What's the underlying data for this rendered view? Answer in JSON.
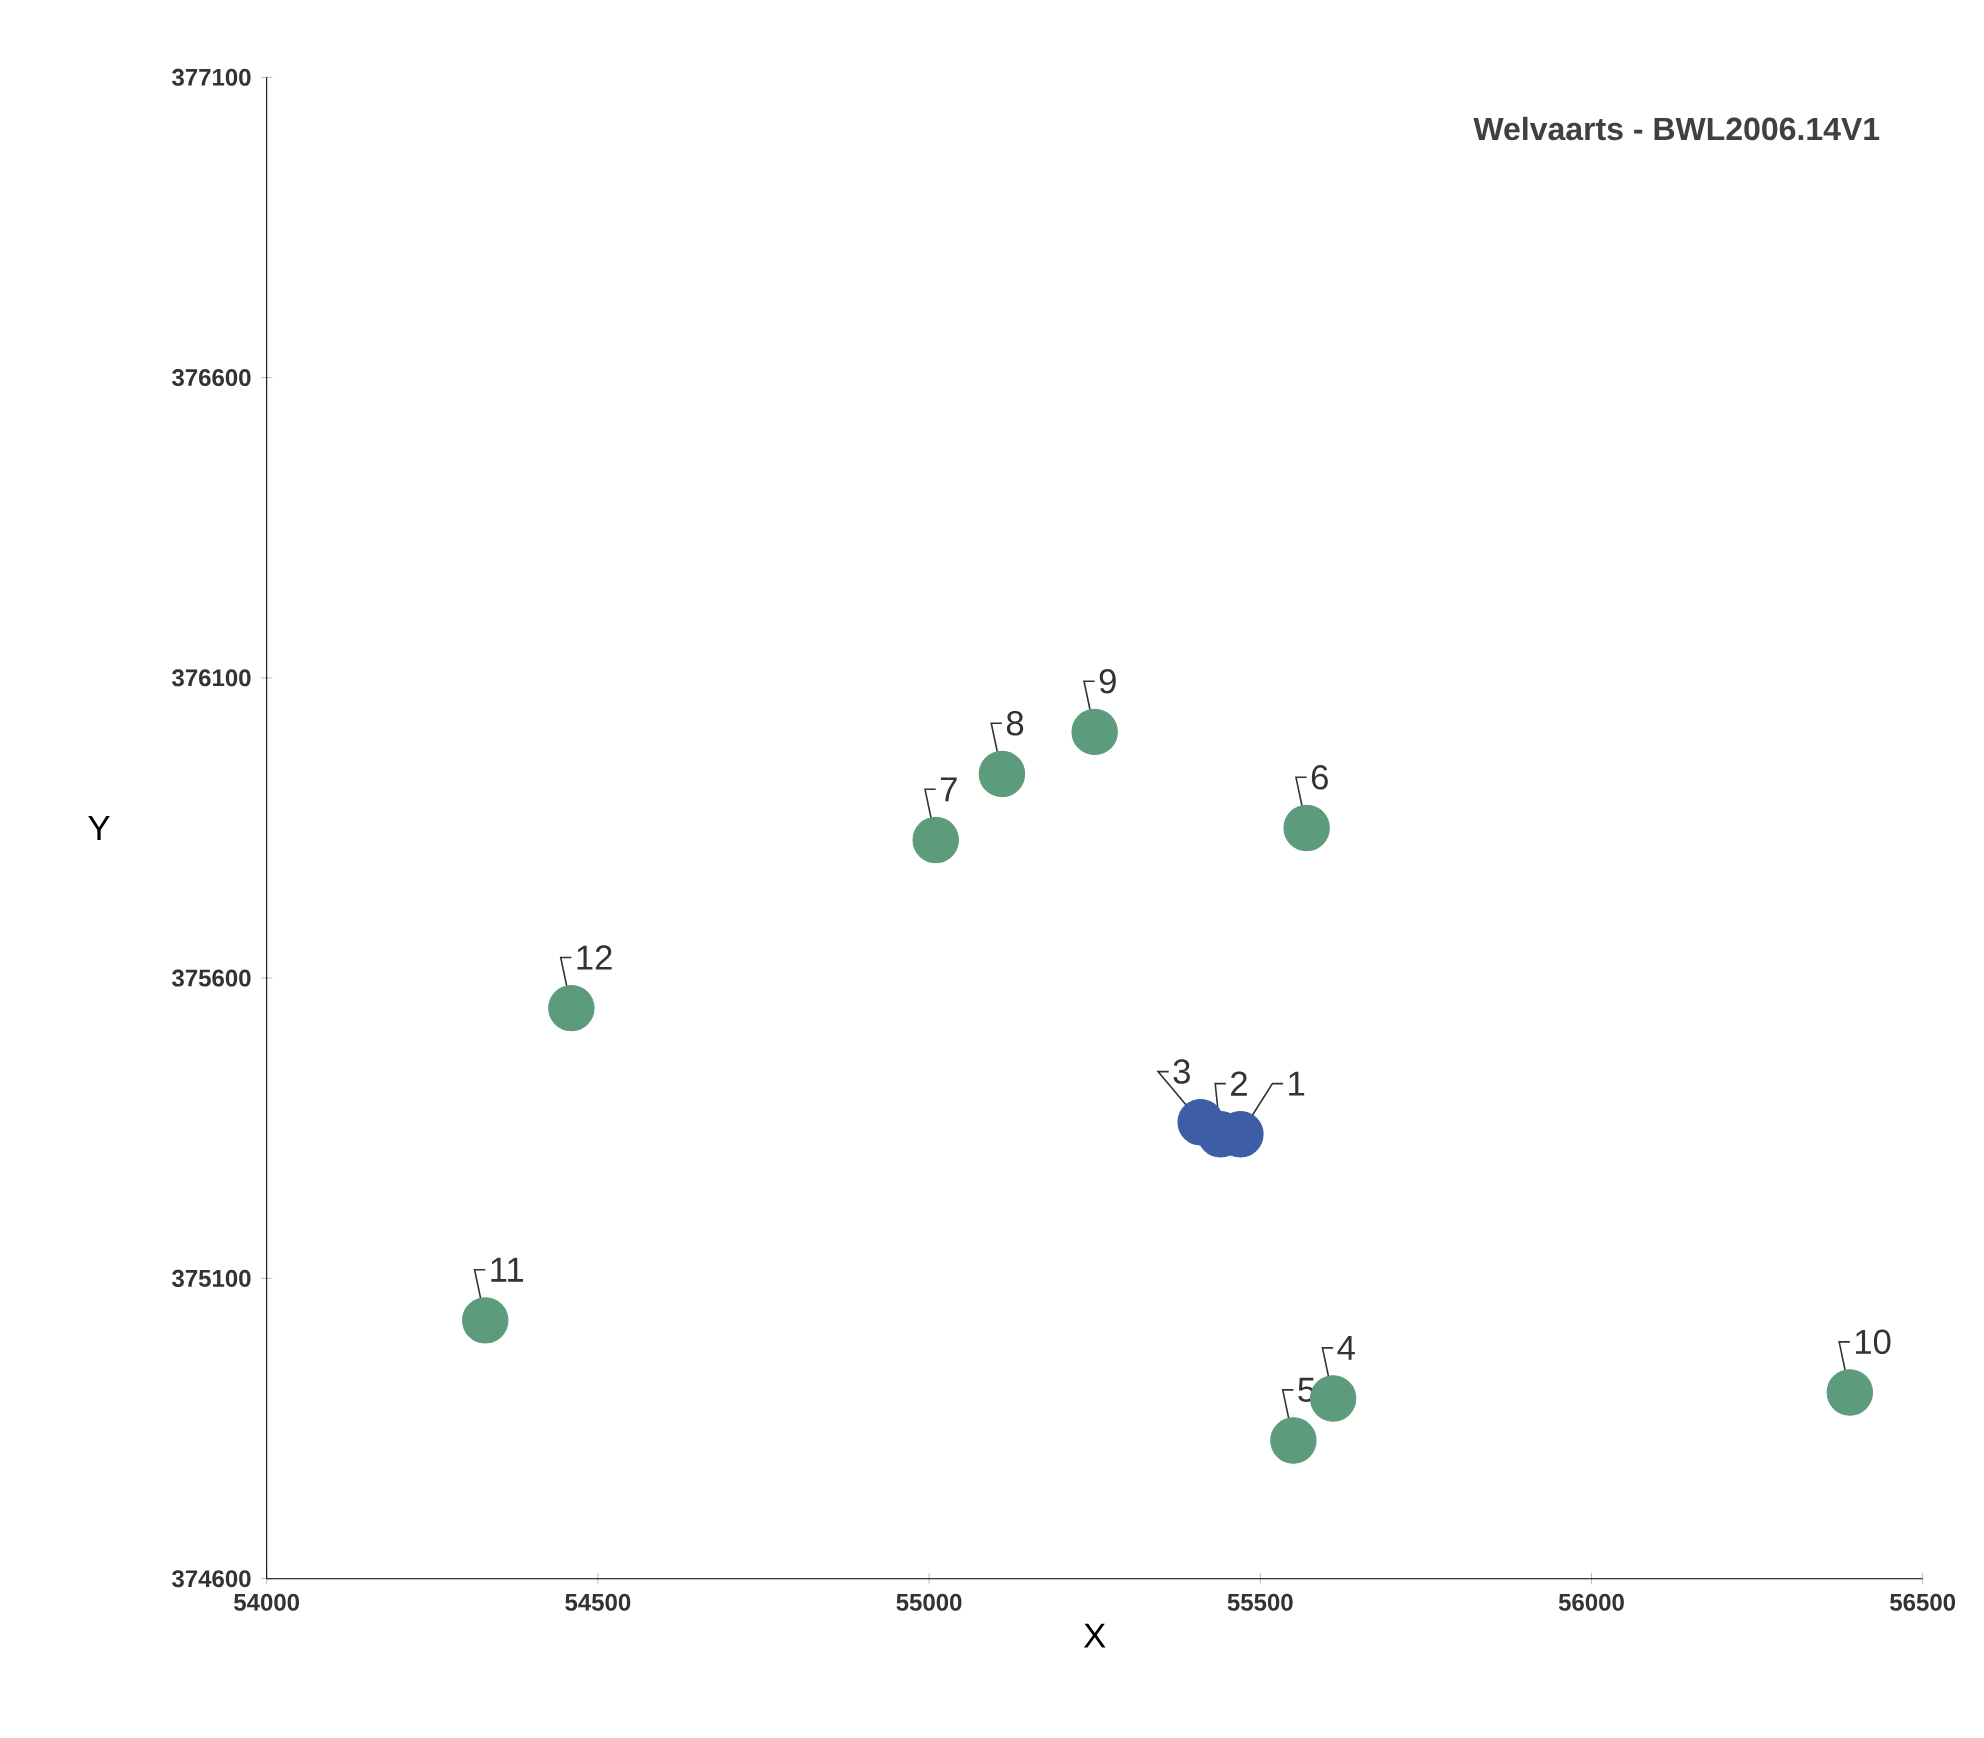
{
  "chart_data": {
    "type": "scatter",
    "title": "Welvaarts - BWL2006.14V1",
    "xlabel": "X",
    "ylabel": "Y",
    "xlim": [
      54000,
      56500
    ],
    "ylim": [
      374600,
      377100
    ],
    "xticks": [
      54000,
      54500,
      55000,
      55500,
      56000,
      56500
    ],
    "yticks": [
      374600,
      375100,
      375600,
      376100,
      376600,
      377100
    ],
    "marker": "circle",
    "series": [
      {
        "color": "#3d5ea6",
        "x": [
          55470,
          55440,
          55410
        ],
        "values": [
          375340,
          375340,
          375360
        ]
      },
      {
        "color": "#5c9c7c",
        "x": [
          55610,
          55550,
          55570,
          55010,
          55110,
          55250,
          56390,
          54330,
          54460
        ],
        "values": [
          374900,
          374830,
          375850,
          375830,
          375940,
          376010,
          374910,
          375030,
          375550
        ]
      }
    ],
    "annotations": [
      {
        "text": "1",
        "x": 55470,
        "y": 375340
      },
      {
        "text": "2",
        "x": 55440,
        "y": 375340
      },
      {
        "text": "3",
        "x": 55410,
        "y": 375360
      },
      {
        "text": "4",
        "x": 55610,
        "y": 374900
      },
      {
        "text": "5",
        "x": 55550,
        "y": 374830
      },
      {
        "text": "6",
        "x": 55570,
        "y": 375850
      },
      {
        "text": "7",
        "x": 55010,
        "y": 375830
      },
      {
        "text": "8",
        "x": 55110,
        "y": 375940
      },
      {
        "text": "9",
        "x": 55250,
        "y": 376010
      },
      {
        "text": "10",
        "x": 56390,
        "y": 374910
      },
      {
        "text": "11",
        "x": 54330,
        "y": 375030
      },
      {
        "text": "12",
        "x": 54460,
        "y": 375550
      }
    ]
  }
}
